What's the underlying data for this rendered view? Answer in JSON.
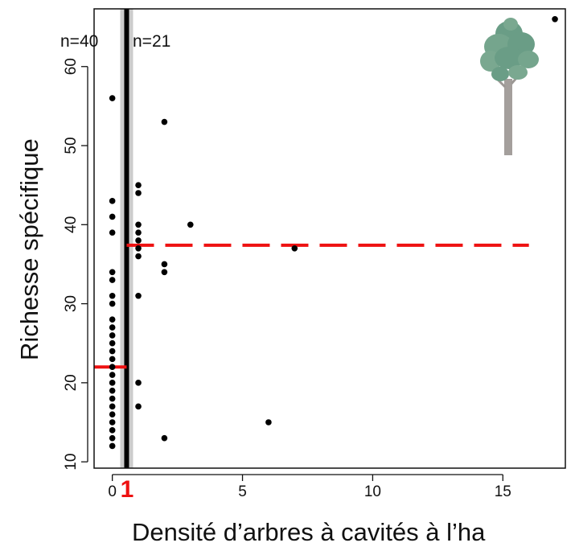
{
  "chart_data": {
    "type": "scatter",
    "title": "",
    "xlabel": "Densité d’arbres à cavités à l’ha",
    "ylabel": "Richesse spécifique",
    "xlim": [
      -0.7,
      17.4
    ],
    "ylim": [
      9.2,
      67.3
    ],
    "xticks": [
      0,
      5,
      10,
      15
    ],
    "yticks": [
      10,
      20,
      30,
      40,
      50,
      60
    ],
    "x_tick_labels": [
      "0",
      "5",
      "10",
      "15"
    ],
    "y_tick_labels": [
      "10",
      "20",
      "30",
      "40",
      "50",
      "60"
    ],
    "grid": false,
    "legend": "none",
    "points": [
      {
        "x": 0,
        "y": 12
      },
      {
        "x": 0,
        "y": 13
      },
      {
        "x": 0,
        "y": 14
      },
      {
        "x": 0,
        "y": 15
      },
      {
        "x": 0,
        "y": 16
      },
      {
        "x": 0,
        "y": 17
      },
      {
        "x": 0,
        "y": 18
      },
      {
        "x": 0,
        "y": 19
      },
      {
        "x": 0,
        "y": 20
      },
      {
        "x": 0,
        "y": 21
      },
      {
        "x": 0,
        "y": 22
      },
      {
        "x": 0,
        "y": 23
      },
      {
        "x": 0,
        "y": 24
      },
      {
        "x": 0,
        "y": 25
      },
      {
        "x": 0,
        "y": 26
      },
      {
        "x": 0,
        "y": 27
      },
      {
        "x": 0,
        "y": 28
      },
      {
        "x": 0,
        "y": 30
      },
      {
        "x": 0,
        "y": 31
      },
      {
        "x": 0,
        "y": 33
      },
      {
        "x": 0,
        "y": 34
      },
      {
        "x": 0,
        "y": 39
      },
      {
        "x": 0,
        "y": 41
      },
      {
        "x": 0,
        "y": 43
      },
      {
        "x": 0,
        "y": 56
      },
      {
        "x": 1,
        "y": 17
      },
      {
        "x": 1,
        "y": 20
      },
      {
        "x": 1,
        "y": 31
      },
      {
        "x": 1,
        "y": 36
      },
      {
        "x": 1,
        "y": 37
      },
      {
        "x": 1,
        "y": 38
      },
      {
        "x": 1,
        "y": 39
      },
      {
        "x": 1,
        "y": 40
      },
      {
        "x": 1,
        "y": 44
      },
      {
        "x": 1,
        "y": 45
      },
      {
        "x": 2,
        "y": 13
      },
      {
        "x": 2,
        "y": 34
      },
      {
        "x": 2,
        "y": 35
      },
      {
        "x": 2,
        "y": 53
      },
      {
        "x": 3,
        "y": 40
      },
      {
        "x": 6,
        "y": 15
      },
      {
        "x": 7,
        "y": 37
      },
      {
        "x": 17,
        "y": 66
      }
    ],
    "threshold": {
      "x": 0.55,
      "label": "1"
    },
    "group_means": [
      {
        "label": "n=40",
        "mean": 22,
        "x_from": -0.7,
        "x_to": 0.55,
        "style": "solid"
      },
      {
        "label": "n=21",
        "mean": 37.4,
        "x_from": 0.55,
        "x_to": 16,
        "style": "dashed"
      }
    ],
    "colors": {
      "points": "#000000",
      "mean_line": "#ee1111",
      "threshold": "#000000",
      "threshold_band": "#cccccc",
      "threshold_label": "#ee1111"
    },
    "decoration": {
      "icon": "tree-icon"
    }
  }
}
